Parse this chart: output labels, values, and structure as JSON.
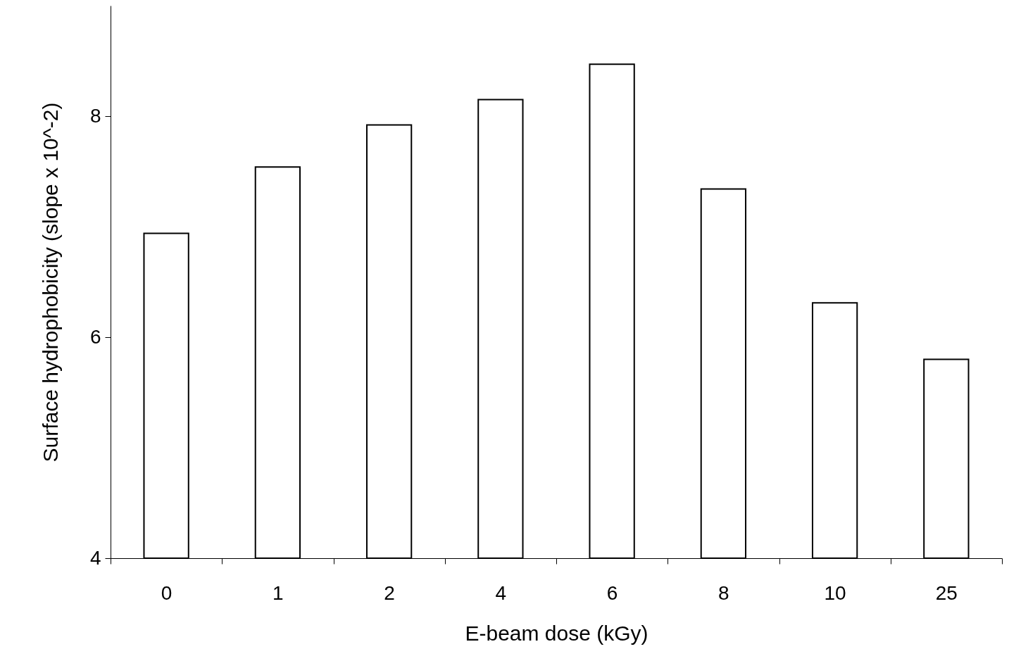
{
  "chart_data": {
    "type": "bar",
    "xlabel": "E-beam dose (kGy)",
    "ylabel": "Surface hydrophobicity (slope x 10^-2)",
    "categories": [
      "0",
      "1",
      "2",
      "4",
      "6",
      "8",
      "10",
      "25"
    ],
    "values": [
      6.94,
      7.54,
      7.92,
      8.15,
      8.47,
      7.34,
      6.31,
      5.8
    ],
    "color": "#ffffff",
    "ylim": [
      4,
      9
    ],
    "yticks": [
      4,
      6,
      8
    ],
    "grid": false
  }
}
